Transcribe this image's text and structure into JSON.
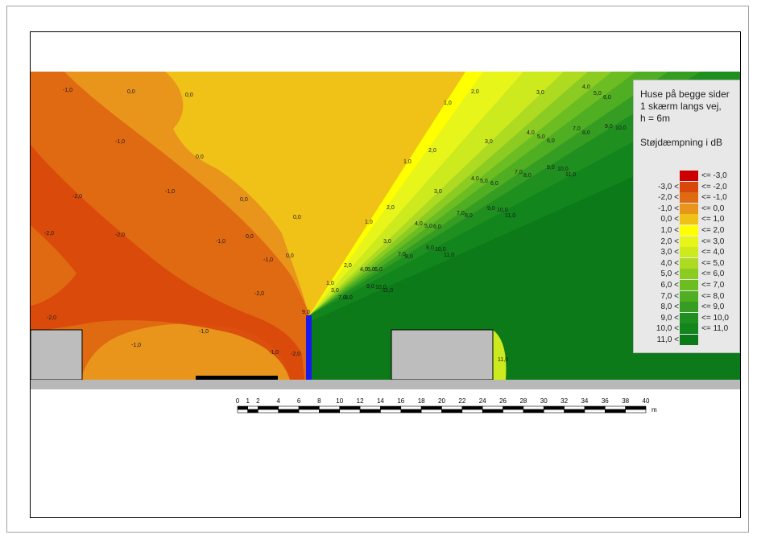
{
  "legend": {
    "title_lines": [
      "Huse på begge sider",
      "1 skærm langs vej,",
      "h = 6m"
    ],
    "subtitle": "Støjdæmpning i dB",
    "classes": [
      {
        "lo": "",
        "hi": "<= -3,0",
        "color": "#cc0000"
      },
      {
        "lo": "-3,0 <",
        "hi": "<= -2,0",
        "color": "#d9480b"
      },
      {
        "lo": "-2,0 <",
        "hi": "<= -1,0",
        "color": "#e06a12"
      },
      {
        "lo": "-1,0 <",
        "hi": "<=  0,0",
        "color": "#e9951c"
      },
      {
        "lo": "0,0 <",
        "hi": "<=  1,0",
        "color": "#f0c217"
      },
      {
        "lo": "1,0 <",
        "hi": "<=  2,0",
        "color": "#ffff00"
      },
      {
        "lo": "2,0 <",
        "hi": "<=  3,0",
        "color": "#e8f51a"
      },
      {
        "lo": "3,0 <",
        "hi": "<=  4,0",
        "color": "#cdea1f"
      },
      {
        "lo": "4,0 <",
        "hi": "<=  5,0",
        "color": "#aedb22"
      },
      {
        "lo": "5,0 <",
        "hi": "<=  6,0",
        "color": "#8ccc22"
      },
      {
        "lo": "6,0 <",
        "hi": "<=  7,0",
        "color": "#6bbd22"
      },
      {
        "lo": "7,0 <",
        "hi": "<=  8,0",
        "color": "#4fae22"
      },
      {
        "lo": "8,0 <",
        "hi": "<=  9,0",
        "color": "#359e22"
      },
      {
        "lo": "9,0 <",
        "hi": "<= 10,0",
        "color": "#1f9020"
      },
      {
        "lo": "10,0 <",
        "hi": "<= 11,0",
        "color": "#12851c"
      },
      {
        "lo": "11,0 <",
        "hi": "",
        "color": "#0c7a18"
      }
    ]
  },
  "scale_bar": {
    "ticks": [
      "0",
      "1",
      "2",
      "4",
      "6",
      "8",
      "10",
      "12",
      "14",
      "16",
      "18",
      "20",
      "22",
      "24",
      "26",
      "28",
      "30",
      "32",
      "34",
      "36",
      "38",
      "40"
    ],
    "unit": "m"
  },
  "contour_labels": [
    "-1,0",
    "0,0",
    "-2,0",
    "1,0",
    "2,0",
    "3,0",
    "4,0",
    "5,0",
    "6,0",
    "7,0",
    "8,0",
    "9,0",
    "10,0",
    "11,0"
  ],
  "colors": {
    "barrier": "#1a1aee",
    "building": "#bdbdbd",
    "road": "#b8b8b8"
  }
}
